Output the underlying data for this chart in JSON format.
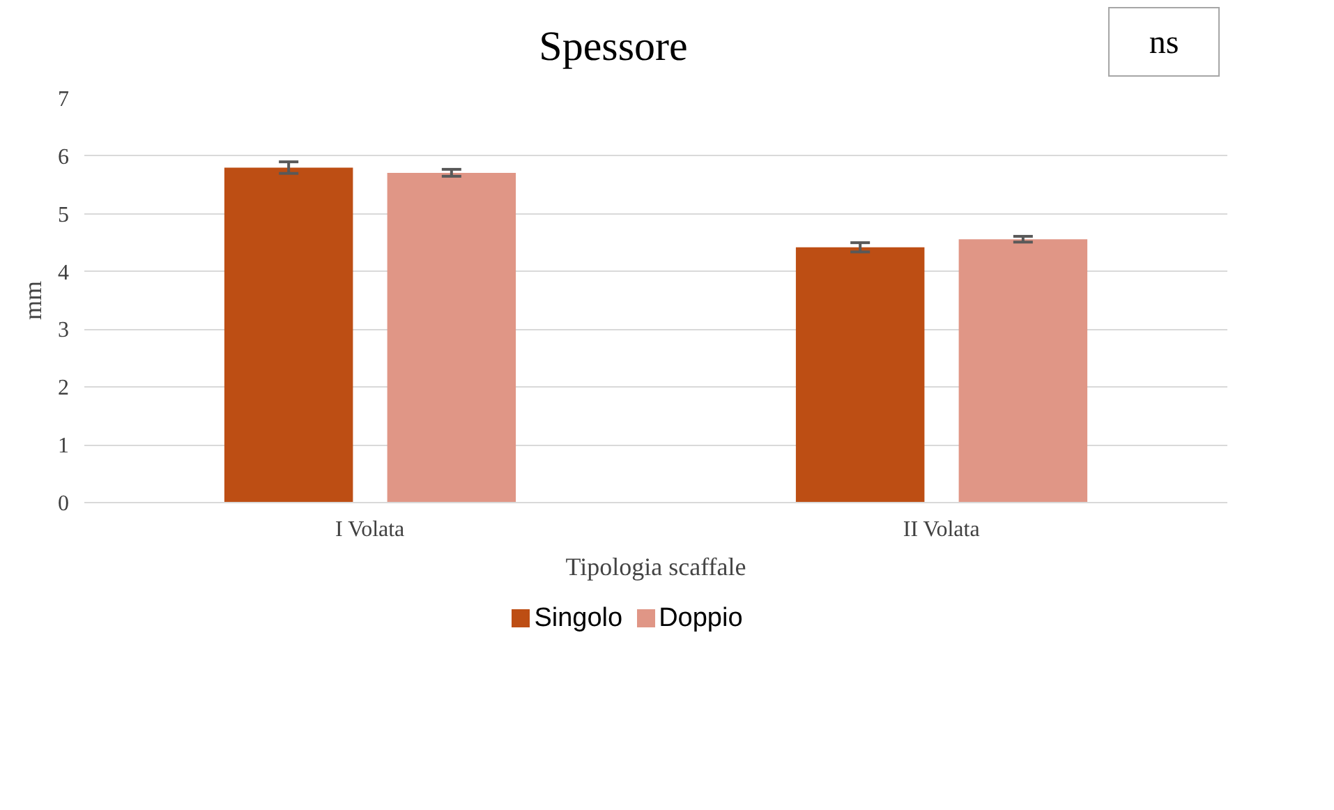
{
  "chart_data": {
    "type": "bar",
    "title": "Spessore",
    "xlabel": "Tipologia scaffale",
    "ylabel": "mm",
    "categories": [
      "I Volata",
      "II Volata"
    ],
    "series": [
      {
        "name": "Singolo",
        "color": "#bd4e14",
        "values": [
          5.8,
          4.42
        ],
        "errors": [
          0.1,
          0.08
        ]
      },
      {
        "name": "Doppio",
        "color": "#e09686",
        "values": [
          5.71,
          4.56
        ],
        "errors": [
          0.06,
          0.05
        ]
      }
    ],
    "ylim": [
      0,
      7
    ],
    "yticks": [
      0,
      1,
      2,
      3,
      4,
      5,
      6,
      7
    ],
    "grid": "y",
    "legend": "bottom",
    "annotations": [
      "ns"
    ]
  }
}
